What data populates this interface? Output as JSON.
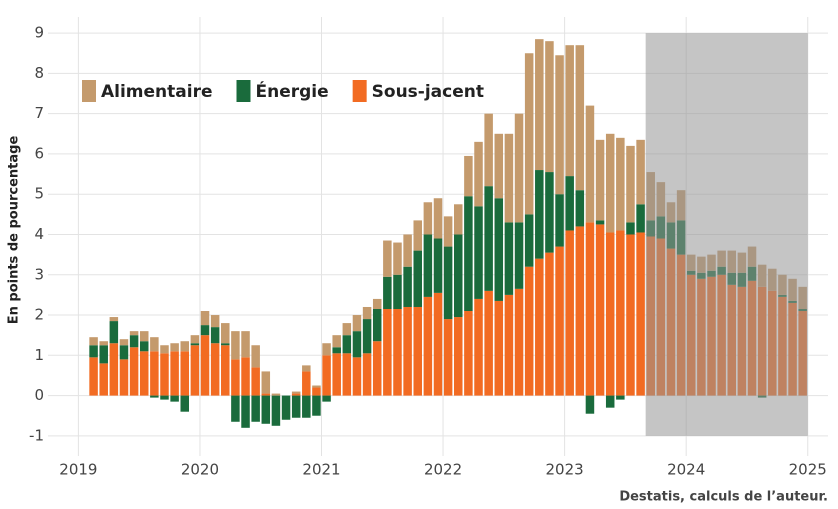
{
  "chart_data": {
    "type": "stacked_bar",
    "y_label": "En points de pourcentage",
    "source": "Destatis, calculs de l’auteur.",
    "x": [
      "2019-02",
      "2019-03",
      "2019-04",
      "2019-05",
      "2019-06",
      "2019-07",
      "2019-08",
      "2019-09",
      "2019-10",
      "2019-11",
      "2019-12",
      "2020-01",
      "2020-02",
      "2020-03",
      "2020-04",
      "2020-05",
      "2020-06",
      "2020-07",
      "2020-08",
      "2020-09",
      "2020-10",
      "2020-11",
      "2020-12",
      "2021-01",
      "2021-02",
      "2021-03",
      "2021-04",
      "2021-05",
      "2021-06",
      "2021-07",
      "2021-08",
      "2021-09",
      "2021-10",
      "2021-11",
      "2021-12",
      "2022-01",
      "2022-02",
      "2022-03",
      "2022-04",
      "2022-05",
      "2022-06",
      "2022-07",
      "2022-08",
      "2022-09",
      "2022-10",
      "2022-11",
      "2022-12",
      "2023-01",
      "2023-02",
      "2023-03",
      "2023-04",
      "2023-05",
      "2023-06",
      "2023-07",
      "2023-08",
      "2023-09",
      "2023-10",
      "2023-11",
      "2023-12",
      "2024-01",
      "2024-02",
      "2024-03",
      "2024-04",
      "2024-05",
      "2024-06",
      "2024-07",
      "2024-08",
      "2024-09",
      "2024-10",
      "2024-11",
      "2024-12"
    ],
    "series": [
      {
        "name": "Alimentaire",
        "color": "#c49a6c",
        "values": [
          0.2,
          0.1,
          0.1,
          0.15,
          0.1,
          0.25,
          0.35,
          0.2,
          0.2,
          0.25,
          0.2,
          0.35,
          0.3,
          0.5,
          0.7,
          0.65,
          0.55,
          0.55,
          0.05,
          0,
          0.05,
          0.15,
          0.05,
          0.3,
          0.3,
          0.3,
          0.4,
          0.3,
          0.25,
          0.9,
          0.8,
          0.8,
          0.75,
          0.8,
          1.0,
          0.75,
          0.75,
          1.0,
          1.6,
          1.8,
          1.6,
          2.2,
          2.7,
          4.0,
          3.25,
          3.25,
          3.45,
          3.25,
          3.6,
          2.9,
          2.0,
          2.45,
          2.3,
          1.9,
          1.6,
          1.2,
          0.85,
          0.5,
          0.75,
          0.4,
          0.4,
          0.4,
          0.4,
          0.55,
          0.5,
          0.5,
          0.55,
          0.55,
          0.5,
          0.55,
          0.55
        ]
      },
      {
        "name": "Énergie",
        "color": "#1a6b3c",
        "values": [
          0.3,
          0.45,
          0.55,
          0.35,
          0.3,
          0.25,
          -0.05,
          -0.1,
          -0.15,
          -0.4,
          0.05,
          0.25,
          0.4,
          0.05,
          -0.65,
          -0.8,
          -0.65,
          -0.7,
          -0.75,
          -0.6,
          -0.55,
          -0.55,
          -0.5,
          -0.15,
          0.15,
          0.45,
          0.65,
          0.85,
          0.8,
          0.8,
          0.85,
          1.0,
          1.4,
          1.55,
          1.35,
          1.8,
          2.05,
          2.85,
          2.3,
          2.6,
          2.55,
          1.8,
          1.65,
          1.3,
          2.2,
          2.0,
          1.3,
          1.35,
          0.9,
          -0.45,
          0.1,
          -0.3,
          -0.1,
          0.3,
          0.7,
          0.4,
          0.55,
          0.65,
          0.85,
          0.1,
          0.15,
          0.15,
          0.2,
          0.3,
          0.35,
          0.35,
          -0.05,
          0.0,
          0.05,
          0.05,
          0.05
        ]
      },
      {
        "name": "Sous-jacent",
        "color": "#f26b22",
        "values": [
          0.95,
          0.8,
          1.3,
          0.9,
          1.2,
          1.1,
          1.1,
          1.05,
          1.1,
          1.1,
          1.25,
          1.5,
          1.3,
          1.25,
          0.9,
          0.95,
          0.7,
          0.05,
          0,
          0,
          0.05,
          0.6,
          0.2,
          1.0,
          1.05,
          1.05,
          0.95,
          1.05,
          1.35,
          2.15,
          2.15,
          2.2,
          2.2,
          2.45,
          2.55,
          1.9,
          1.95,
          2.1,
          2.4,
          2.6,
          2.35,
          2.5,
          2.65,
          3.2,
          3.4,
          3.55,
          3.7,
          4.1,
          4.2,
          4.3,
          4.25,
          4.05,
          4.1,
          4.0,
          4.05,
          3.95,
          3.9,
          3.65,
          3.5,
          3.0,
          2.9,
          2.95,
          3.0,
          2.75,
          2.7,
          2.85,
          2.7,
          2.6,
          2.45,
          2.3,
          2.1
        ]
      }
    ],
    "highlight_span": [
      "2023-09",
      "2024-12"
    ],
    "xlim": [
      "2018-10",
      "2025-03"
    ],
    "xticks": [
      2019,
      2020,
      2021,
      2022,
      2023,
      2024,
      2025
    ],
    "ylim": [
      -1.5,
      9.4
    ],
    "yticks": [
      -1,
      0,
      1,
      2,
      3,
      4,
      5,
      6,
      7,
      8,
      9
    ],
    "grid": true,
    "legend": "top-left"
  }
}
